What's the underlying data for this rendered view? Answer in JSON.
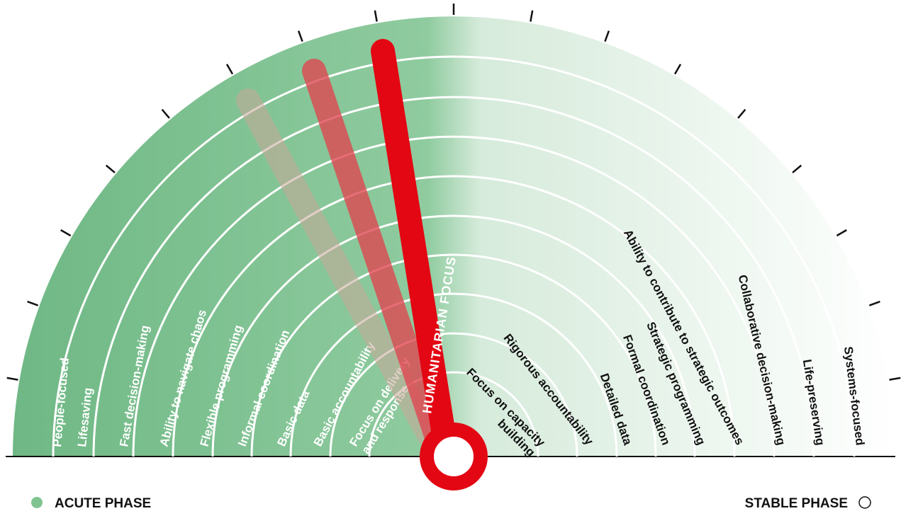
{
  "needle_label": "HUMANITARIAN FOCUS",
  "legend": {
    "acute": "ACUTE PHASE",
    "stable": "STABLE PHASE",
    "acute_color": "#7fc391",
    "stable_color": "#ffffff"
  },
  "colors": {
    "needle": "#e30613",
    "needle_ghost_mid": "#e04550",
    "needle_ghost_far": "#c9a898",
    "acute_fill": "#6fb885",
    "stable_fill": "#ffffff"
  },
  "left_items": [
    [
      "People-focused"
    ],
    [
      "Lifesaving"
    ],
    [
      "Fast decision-making"
    ],
    [
      "Ability to navigate chaos"
    ],
    [
      "Flexible programming"
    ],
    [
      "Informal coordination"
    ],
    [
      "Basic data"
    ],
    [
      "Basic accountability"
    ],
    [
      "Focus on delivery",
      "and response"
    ]
  ],
  "right_items": [
    [
      "Systems-focused"
    ],
    [
      "Life-preserving"
    ],
    [
      "Collaborative decision-making"
    ],
    [
      "Ability to contribute to strategic outcomes"
    ],
    [
      "Strategic programming"
    ],
    [
      "Formal coordination"
    ],
    [
      "Detailed data"
    ],
    [
      "Rigorous accountability"
    ],
    [
      "Focus on capacity",
      "building"
    ]
  ]
}
